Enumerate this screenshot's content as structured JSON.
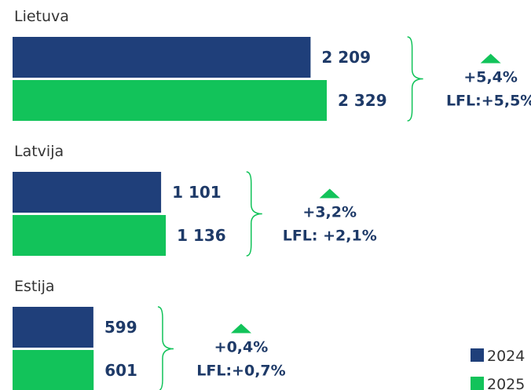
{
  "chart_data": {
    "type": "bar",
    "orientation": "horizontal",
    "categories": [
      "Lietuva",
      "Latvija",
      "Estija"
    ],
    "series": [
      {
        "name": "2024",
        "color": "#1f3f7a",
        "values": [
          2209,
          1101,
          599
        ],
        "value_labels": [
          "2 209",
          "1 101",
          "599"
        ]
      },
      {
        "name": "2025",
        "color": "#12c35a",
        "values": [
          2329,
          1136,
          601
        ],
        "value_labels": [
          "2 329",
          "1 136",
          "601"
        ]
      }
    ],
    "annotations": [
      {
        "change": "+5,4%",
        "lfl": "LFL:+5,5%"
      },
      {
        "change": "+3,2%",
        "lfl": "LFL:  +2,1%"
      },
      {
        "change": "+0,4%",
        "lfl": "LFL:+0,7%"
      }
    ],
    "annotation_color": "#12c35a",
    "legend": "bottom-right"
  }
}
